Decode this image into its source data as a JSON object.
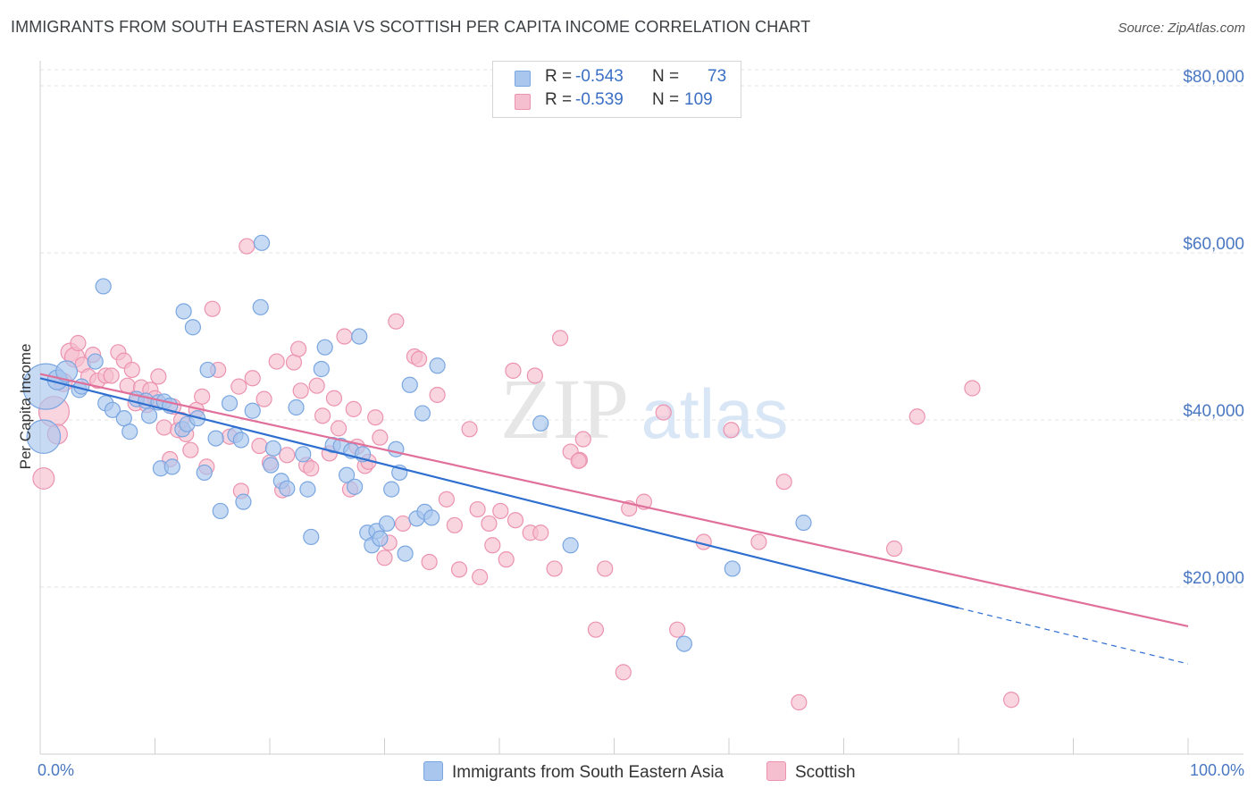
{
  "title": "IMMIGRANTS FROM SOUTH EASTERN ASIA VS SCOTTISH PER CAPITA INCOME CORRELATION CHART",
  "source": "Source: ZipAtlas.com",
  "watermark": {
    "zip": "ZIP",
    "atlas": "atlas"
  },
  "legend": {
    "blue": {
      "r_label": "R = ",
      "r_value": "-0.543",
      "n_label": "N = ",
      "n_value": "73"
    },
    "pink": {
      "r_label": "R = ",
      "r_value": "-0.539",
      "n_label": "N = ",
      "n_value": "109"
    }
  },
  "bottom_legend": {
    "blue": "Immigrants from South Eastern Asia",
    "pink": "Scottish"
  },
  "x_axis": {
    "left_label": "0.0%",
    "right_label": "100.0%"
  },
  "colors": {
    "blue_fill": "#a9c6ee",
    "blue_stroke": "#7aa6e0",
    "blue_line": "#2f6fd0",
    "pink_fill": "#f6bfd0",
    "pink_stroke": "#ec93b0",
    "pink_line": "#e0709a",
    "axis_label": "#4a78c2",
    "grid": "#e3e3e3"
  },
  "chart_data": {
    "type": "scatter",
    "title": "IMMIGRANTS FROM SOUTH EASTERN ASIA VS SCOTTISH PER CAPITA INCOME CORRELATION CHART",
    "xlabel": "",
    "ylabel": "Per Capita Income",
    "xlim": [
      0,
      100
    ],
    "ylim": [
      0,
      83000
    ],
    "y_ticks": [
      {
        "value": 20000,
        "label": "$20,000"
      },
      {
        "value": 40000,
        "label": "$40,000"
      },
      {
        "value": 60000,
        "label": "$60,000"
      },
      {
        "value": 80000,
        "label": "$80,000"
      }
    ],
    "grid": true,
    "legend_position": "top-center",
    "series": [
      {
        "name": "Immigrants from South Eastern Asia",
        "color": "#a9c6ee",
        "trend": {
          "x": [
            0,
            80,
            100
          ],
          "y": [
            45000,
            17500,
            10800
          ],
          "solid_until": 80
        },
        "points": [
          [
            0.3,
            38000,
            2.2
          ],
          [
            0.5,
            44000,
            3
          ],
          [
            1.5,
            44800,
            1.3
          ],
          [
            2.3,
            45800,
            1.4
          ],
          [
            3.4,
            43600,
            1
          ],
          [
            3.6,
            44000,
            1
          ],
          [
            4.8,
            47000,
            1
          ],
          [
            5.5,
            56000,
            1
          ],
          [
            5.7,
            42000,
            1
          ],
          [
            6.3,
            41200,
            1
          ],
          [
            7.3,
            40200,
            1
          ],
          [
            7.8,
            38600,
            1
          ],
          [
            8.4,
            42500,
            1
          ],
          [
            9.2,
            42300,
            1
          ],
          [
            9.5,
            40500,
            1
          ],
          [
            10.3,
            42100,
            1
          ],
          [
            10.5,
            34200,
            1
          ],
          [
            10.8,
            42200,
            1
          ],
          [
            11.3,
            41700,
            1
          ],
          [
            11.5,
            34400,
            1
          ],
          [
            12.4,
            38900,
            1
          ],
          [
            12.5,
            53000,
            1
          ],
          [
            12.8,
            39500,
            1
          ],
          [
            13.3,
            51100,
            1
          ],
          [
            13.7,
            40200,
            1
          ],
          [
            14.3,
            33700,
            1
          ],
          [
            14.6,
            46000,
            1
          ],
          [
            15.3,
            37800,
            1
          ],
          [
            15.7,
            29100,
            1
          ],
          [
            16.5,
            42000,
            1
          ],
          [
            17,
            38200,
            1
          ],
          [
            17.5,
            37600,
            1
          ],
          [
            17.7,
            30200,
            1
          ],
          [
            18.5,
            41100,
            1
          ],
          [
            19.2,
            53500,
            1
          ],
          [
            19.3,
            61200,
            1
          ],
          [
            20.3,
            36600,
            1
          ],
          [
            20.1,
            34600,
            1
          ],
          [
            21,
            32700,
            1
          ],
          [
            21.5,
            31800,
            1
          ],
          [
            22.3,
            41500,
            1
          ],
          [
            22.9,
            35900,
            1
          ],
          [
            23.3,
            31700,
            1
          ],
          [
            23.6,
            26000,
            1
          ],
          [
            24.5,
            46100,
            1
          ],
          [
            24.8,
            48700,
            1
          ],
          [
            25.5,
            37000,
            1
          ],
          [
            26.2,
            36900,
            1
          ],
          [
            26.7,
            33400,
            1
          ],
          [
            27.1,
            36300,
            1
          ],
          [
            27.4,
            32000,
            1
          ],
          [
            27.8,
            50000,
            1
          ],
          [
            28.1,
            35900,
            1
          ],
          [
            28.5,
            26500,
            1
          ],
          [
            28.9,
            25000,
            1
          ],
          [
            29.3,
            26700,
            1
          ],
          [
            29.6,
            25800,
            1
          ],
          [
            30.2,
            27600,
            1
          ],
          [
            30.6,
            31700,
            1
          ],
          [
            31.3,
            33700,
            1
          ],
          [
            31,
            36500,
            1
          ],
          [
            31.8,
            24000,
            1
          ],
          [
            32.2,
            44200,
            1
          ],
          [
            32.8,
            28200,
            1
          ],
          [
            33.3,
            40800,
            1
          ],
          [
            33.5,
            29000,
            1
          ],
          [
            34.1,
            28300,
            1
          ],
          [
            34.6,
            46500,
            1
          ],
          [
            43.6,
            39600,
            1
          ],
          [
            46.2,
            25000,
            1
          ],
          [
            56.1,
            13200,
            1
          ],
          [
            60.3,
            22200,
            1
          ],
          [
            66.5,
            27700,
            1
          ]
        ]
      },
      {
        "name": "Scottish",
        "color": "#f6bfd0",
        "trend": {
          "x": [
            0,
            100
          ],
          "y": [
            45500,
            15300
          ],
          "solid_until": 100
        },
        "points": [
          [
            0.3,
            33000,
            1.4
          ],
          [
            1.2,
            41000,
            2
          ],
          [
            1.5,
            38300,
            1.3
          ],
          [
            2,
            44500,
            1.2
          ],
          [
            2.6,
            48100,
            1.2
          ],
          [
            3,
            47500,
            1.3
          ],
          [
            3.3,
            49200,
            1
          ],
          [
            3.7,
            46600,
            1
          ],
          [
            4.2,
            45200,
            1
          ],
          [
            4.6,
            47800,
            1
          ],
          [
            5,
            44700,
            1
          ],
          [
            5.7,
            45300,
            1
          ],
          [
            6.2,
            45300,
            1
          ],
          [
            6.8,
            48100,
            1
          ],
          [
            7.3,
            47100,
            1
          ],
          [
            7.6,
            44100,
            1
          ],
          [
            8,
            46000,
            1
          ],
          [
            8.3,
            42000,
            1
          ],
          [
            8.8,
            43900,
            1
          ],
          [
            9.3,
            41800,
            1
          ],
          [
            9.6,
            43600,
            1
          ],
          [
            10,
            42600,
            1
          ],
          [
            10.3,
            45200,
            1
          ],
          [
            10.8,
            39100,
            1
          ],
          [
            11.3,
            35300,
            1
          ],
          [
            11.6,
            41600,
            1
          ],
          [
            12,
            38800,
            1
          ],
          [
            12.3,
            40000,
            1
          ],
          [
            12.7,
            38300,
            1
          ],
          [
            13.1,
            36400,
            1
          ],
          [
            13.6,
            41200,
            1
          ],
          [
            14.1,
            42800,
            1
          ],
          [
            14.5,
            34400,
            1
          ],
          [
            15,
            53300,
            1
          ],
          [
            15.5,
            46000,
            1
          ],
          [
            16.5,
            38000,
            1
          ],
          [
            17.3,
            44000,
            1
          ],
          [
            17.5,
            31500,
            1
          ],
          [
            18,
            60800,
            1
          ],
          [
            18.5,
            45000,
            1
          ],
          [
            19.1,
            36900,
            1
          ],
          [
            19.5,
            42500,
            1
          ],
          [
            20,
            34900,
            1
          ],
          [
            20.6,
            47000,
            1
          ],
          [
            21.1,
            31600,
            1
          ],
          [
            21.5,
            35800,
            1
          ],
          [
            22.1,
            46900,
            1
          ],
          [
            22.5,
            48500,
            1
          ],
          [
            22.7,
            43500,
            1
          ],
          [
            23.2,
            34600,
            1
          ],
          [
            23.6,
            34200,
            1
          ],
          [
            24.1,
            44100,
            1
          ],
          [
            24.6,
            40500,
            1
          ],
          [
            25.2,
            36000,
            1
          ],
          [
            25.6,
            42600,
            1
          ],
          [
            26,
            39000,
            1
          ],
          [
            26.5,
            50000,
            1
          ],
          [
            27,
            31700,
            1
          ],
          [
            27.3,
            41300,
            1
          ],
          [
            27.6,
            36800,
            1
          ],
          [
            28.3,
            34500,
            1
          ],
          [
            28.6,
            35000,
            1
          ],
          [
            29.2,
            40300,
            1
          ],
          [
            29.6,
            37900,
            1
          ],
          [
            30,
            23500,
            1
          ],
          [
            30.4,
            25300,
            1
          ],
          [
            31,
            51800,
            1
          ],
          [
            31.6,
            27600,
            1
          ],
          [
            32.6,
            47600,
            1
          ],
          [
            33,
            47300,
            1
          ],
          [
            33.9,
            23000,
            1
          ],
          [
            34.6,
            43000,
            1
          ],
          [
            35.4,
            30500,
            1
          ],
          [
            36.1,
            27400,
            1
          ],
          [
            36.5,
            22100,
            1
          ],
          [
            37.4,
            38900,
            1
          ],
          [
            38.1,
            29300,
            1
          ],
          [
            38.3,
            21200,
            1
          ],
          [
            39.4,
            25000,
            1
          ],
          [
            40.1,
            29100,
            1
          ],
          [
            40.6,
            23300,
            1
          ],
          [
            41.2,
            45900,
            1
          ],
          [
            41.4,
            28000,
            1
          ],
          [
            42.7,
            26500,
            1
          ],
          [
            43.1,
            45300,
            1
          ],
          [
            43.6,
            26500,
            1
          ],
          [
            44.8,
            22200,
            1
          ],
          [
            45.3,
            49800,
            1
          ],
          [
            46.2,
            36200,
            1
          ],
          [
            47,
            35200,
            1
          ],
          [
            47.3,
            37700,
            1
          ],
          [
            48.4,
            14900,
            1
          ],
          [
            49.2,
            22200,
            1
          ],
          [
            50.8,
            9800,
            1
          ],
          [
            51.3,
            29400,
            1
          ],
          [
            52.6,
            30200,
            1
          ],
          [
            54.3,
            40900,
            1
          ],
          [
            55.5,
            14900,
            1
          ],
          [
            57.8,
            25400,
            1
          ],
          [
            60.2,
            38800,
            1
          ],
          [
            62.6,
            25400,
            1
          ],
          [
            64.8,
            32600,
            1
          ],
          [
            66.1,
            6200,
            1
          ],
          [
            74.4,
            24600,
            1
          ],
          [
            76.4,
            40400,
            1
          ],
          [
            81.2,
            43800,
            1
          ],
          [
            84.6,
            6500,
            1
          ],
          [
            39.1,
            27600,
            1
          ],
          [
            46.9,
            35100,
            1
          ]
        ]
      }
    ]
  }
}
